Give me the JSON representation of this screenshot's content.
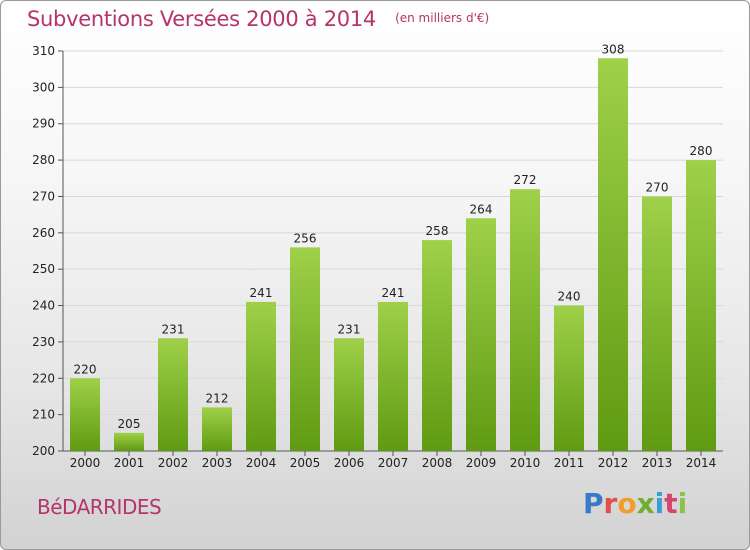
{
  "header": {
    "title": "Subventions Versées 2000 à 2014",
    "unit": "(en milliers d'€)"
  },
  "footer": {
    "town": "BéDARRIDES",
    "logo_text": "Proxiti",
    "logo_colors": [
      "#3a78c9",
      "#e0504a",
      "#f39c2b",
      "#6fae2f",
      "#3a9dd8",
      "#d6446f",
      "#8bc34a"
    ]
  },
  "colors": {
    "bar_light": "#9fd04a",
    "bar_dark": "#5f9b12",
    "accent": "#b5346a",
    "grid": "#d8d8d8"
  },
  "chart_data": {
    "type": "bar",
    "title": "Subventions Versées 2000 à 2014",
    "subtitle": "(en milliers d'€)",
    "xlabel": "",
    "ylabel": "",
    "ylim": [
      200,
      310
    ],
    "yticks": [
      200,
      210,
      220,
      230,
      240,
      250,
      260,
      270,
      280,
      290,
      300,
      310
    ],
    "grid": true,
    "legend": "none",
    "categories": [
      "2000",
      "2001",
      "2002",
      "2003",
      "2004",
      "2005",
      "2006",
      "2007",
      "2008",
      "2009",
      "2010",
      "2011",
      "2012",
      "2013",
      "2014"
    ],
    "values": [
      220,
      205,
      231,
      212,
      241,
      256,
      231,
      241,
      258,
      264,
      272,
      240,
      308,
      270,
      280
    ]
  }
}
